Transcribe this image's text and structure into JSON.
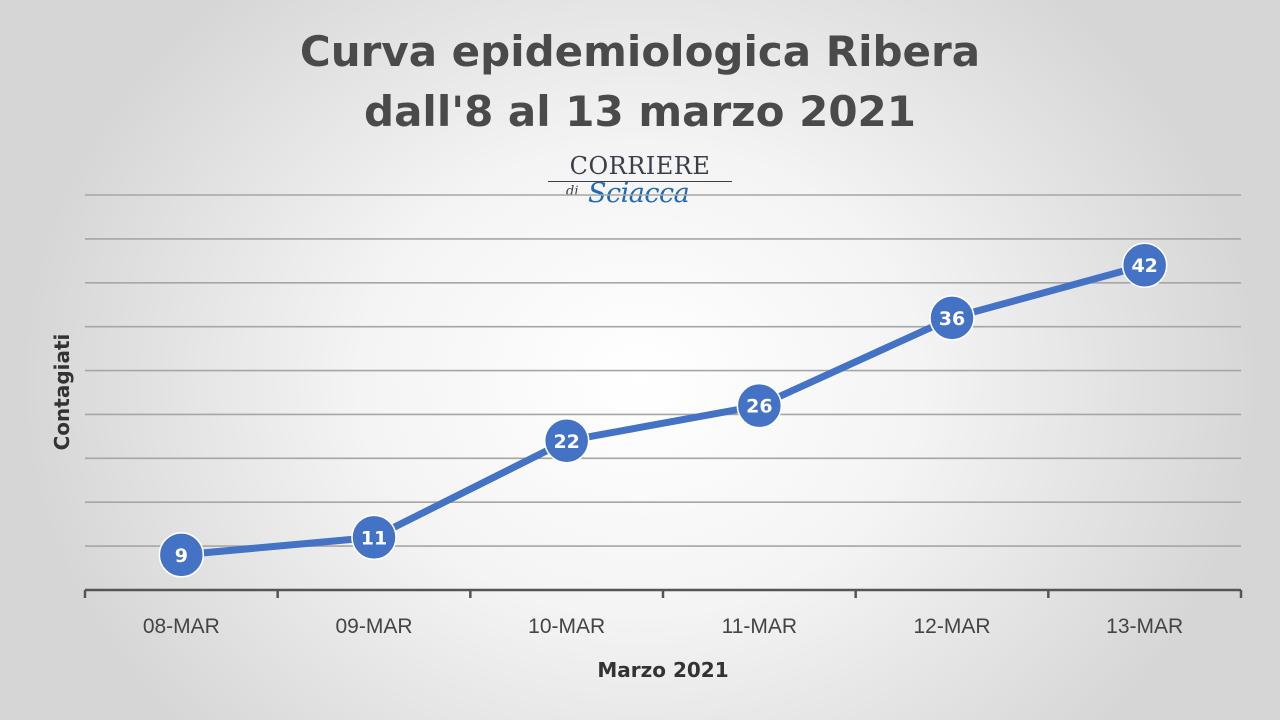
{
  "chart_data": {
    "type": "line",
    "title_lines": [
      "Curva epidemiologica Ribera",
      "dall'8 al 13 marzo 2021"
    ],
    "categories": [
      "08-MAR",
      "09-MAR",
      "10-MAR",
      "11-MAR",
      "12-MAR",
      "13-MAR"
    ],
    "values": [
      9,
      11,
      22,
      26,
      36,
      42
    ],
    "data_labels": [
      "9",
      "11",
      "22",
      "26",
      "36",
      "42"
    ],
    "xlabel": "Marzo 2021",
    "ylabel": "Contagiati",
    "ylim": [
      5,
      50
    ],
    "ytick_step": 5,
    "y_tick_labels_visible": false,
    "grid": true,
    "legend": "none",
    "colors": {
      "series": "#4472c4",
      "grid": "#a6a6a6",
      "axis": "#555555"
    }
  },
  "logo": {
    "line1": "CORRIERE",
    "line2_prefix": "di",
    "line2": "Sciacca"
  }
}
